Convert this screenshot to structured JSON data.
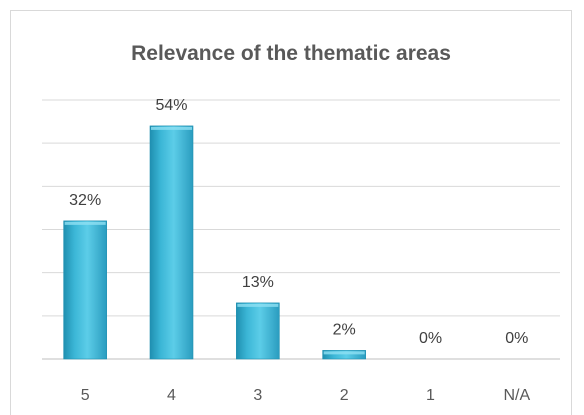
{
  "chart_data": {
    "type": "bar",
    "title": "Relevance of the thematic areas",
    "categories": [
      "5",
      "4",
      "3",
      "2",
      "1",
      "N/A"
    ],
    "values": [
      32,
      54,
      13,
      2,
      0,
      0
    ],
    "value_labels": [
      "32%",
      "54%",
      "13%",
      "2%",
      "0%",
      "0%"
    ],
    "xlabel": "",
    "ylabel": "",
    "ylim": [
      0,
      60
    ],
    "grid": true,
    "legend": "none",
    "bar_color": "#3bb6d6",
    "bar_color_dark": "#1f8fb0"
  }
}
